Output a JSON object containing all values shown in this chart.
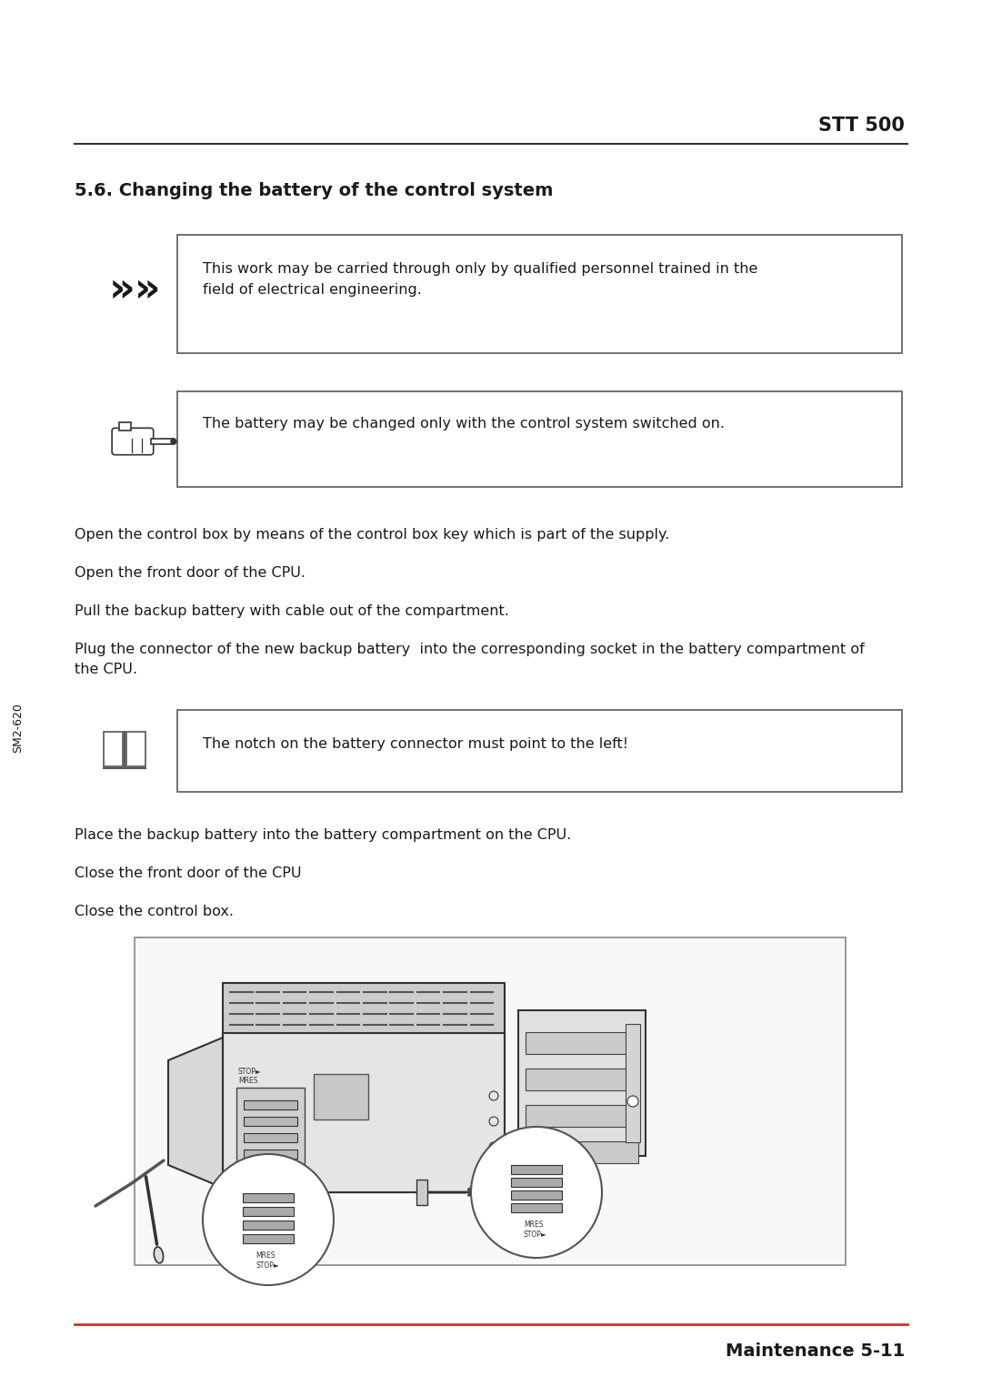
{
  "bg_color": "#ffffff",
  "text_color": "#1a1a1a",
  "header_title": "STT 500",
  "section_title": "5.6. Changing the battery of the control system",
  "warning_box_text": "This work may be carried through only by qualified personnel trained in the\nfield of electrical engineering.",
  "note_box_text": "The battery may be changed only with the control system switched on.",
  "book_box_text_normal": "The notch on the ",
  "book_box_text_bold": "battery connector must point to the left!",
  "body_lines_before": [
    "Open the control box by means of the control box key which is part of the supply.",
    "Open the front door of the CPU.",
    "Pull the backup battery with cable out of the compartment.",
    "Plug the connector of the new backup battery  into the corresponding socket in the battery compartment of\nthe CPU."
  ],
  "body_lines_after": [
    "Place the backup battery into the battery compartment on the CPU.",
    "Close the front door of the CPU",
    "Close the control box."
  ],
  "footer_left": "SM2-620",
  "footer_right": "Maintenance 5-11",
  "line_color": "#c0392b",
  "box_border_color": "#666666",
  "header_line_color": "#333333"
}
